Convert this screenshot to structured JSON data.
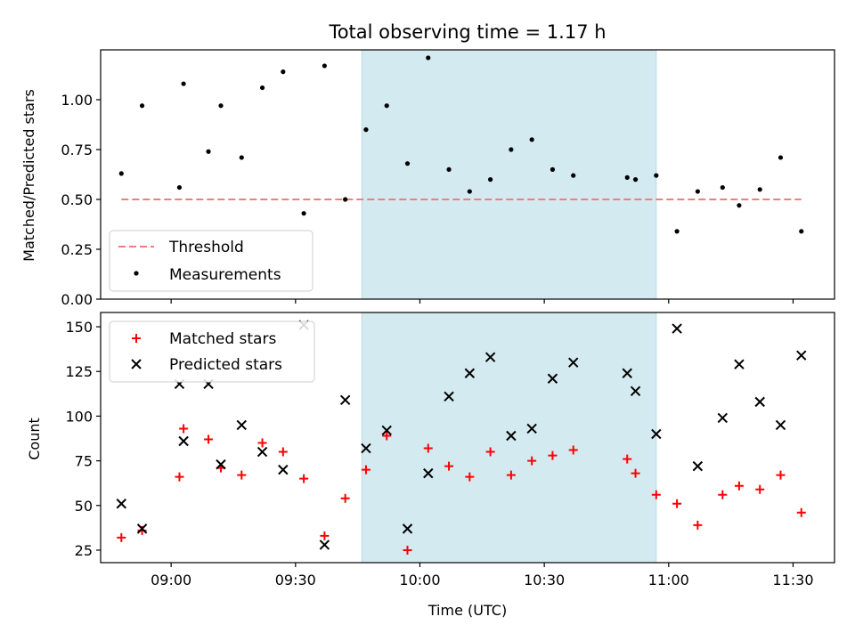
{
  "chart_data": [
    {
      "type": "scatter",
      "title": "Total observing time = 1.17 h",
      "ylabel": "Matched/Predicted stars",
      "xlabel": "",
      "x_range": [
        "08:43",
        "11:40"
      ],
      "ylim": [
        0,
        1.25
      ],
      "yticks": [
        "0.00",
        "0.25",
        "0.50",
        "0.75",
        "1.00"
      ],
      "highlight_span": {
        "start": "09:46",
        "end": "10:57",
        "color": "#d4eaf1"
      },
      "threshold": {
        "name": "Threshold",
        "value": 0.5,
        "x_start": "08:48",
        "x_end": "11:32",
        "color": "#f47c7c"
      },
      "series": [
        {
          "name": "Measurements",
          "color": "#000000",
          "points": [
            [
              "08:48",
              0.63
            ],
            [
              "08:53",
              0.97
            ],
            [
              "09:02",
              0.56
            ],
            [
              "09:03",
              1.08
            ],
            [
              "09:09",
              0.74
            ],
            [
              "09:12",
              0.97
            ],
            [
              "09:17",
              0.71
            ],
            [
              "09:22",
              1.06
            ],
            [
              "09:27",
              1.14
            ],
            [
              "09:32",
              0.43
            ],
            [
              "09:37",
              1.17
            ],
            [
              "09:42",
              0.5
            ],
            [
              "09:47",
              0.85
            ],
            [
              "09:52",
              0.97
            ],
            [
              "09:57",
              0.68
            ],
            [
              "10:02",
              1.21
            ],
            [
              "10:07",
              0.65
            ],
            [
              "10:12",
              0.54
            ],
            [
              "10:17",
              0.6
            ],
            [
              "10:22",
              0.75
            ],
            [
              "10:27",
              0.8
            ],
            [
              "10:32",
              0.65
            ],
            [
              "10:37",
              0.62
            ],
            [
              "10:50",
              0.61
            ],
            [
              "10:52",
              0.6
            ],
            [
              "10:57",
              0.62
            ],
            [
              "11:02",
              0.34
            ],
            [
              "11:07",
              0.54
            ],
            [
              "11:13",
              0.56
            ],
            [
              "11:17",
              0.47
            ],
            [
              "11:22",
              0.55
            ],
            [
              "11:27",
              0.71
            ],
            [
              "11:32",
              0.34
            ]
          ]
        }
      ],
      "legend": {
        "position": "lower-left",
        "entries": [
          "Threshold",
          "Measurements"
        ]
      }
    },
    {
      "type": "scatter",
      "title": "",
      "ylabel": "Count",
      "xlabel": "Time (UTC)",
      "x_range": [
        "08:43",
        "11:40"
      ],
      "xticks": [
        "09:00",
        "09:30",
        "10:00",
        "10:30",
        "11:00",
        "11:30"
      ],
      "ylim": [
        18,
        158
      ],
      "yticks": [
        "25",
        "50",
        "75",
        "100",
        "125",
        "150"
      ],
      "highlight_span": {
        "start": "09:46",
        "end": "10:57",
        "color": "#d4eaf1"
      },
      "series": [
        {
          "name": "Matched stars",
          "marker": "+",
          "color": "#ff0000",
          "points": [
            [
              "08:48",
              32
            ],
            [
              "08:53",
              36
            ],
            [
              "09:02",
              66
            ],
            [
              "09:03",
              93
            ],
            [
              "09:09",
              87
            ],
            [
              "09:12",
              71
            ],
            [
              "09:17",
              67
            ],
            [
              "09:22",
              85
            ],
            [
              "09:27",
              80
            ],
            [
              "09:32",
              65
            ],
            [
              "09:37",
              33
            ],
            [
              "09:42",
              54
            ],
            [
              "09:47",
              70
            ],
            [
              "09:52",
              89
            ],
            [
              "09:57",
              25
            ],
            [
              "10:02",
              82
            ],
            [
              "10:07",
              72
            ],
            [
              "10:12",
              66
            ],
            [
              "10:17",
              80
            ],
            [
              "10:22",
              67
            ],
            [
              "10:27",
              75
            ],
            [
              "10:32",
              78
            ],
            [
              "10:37",
              81
            ],
            [
              "10:50",
              76
            ],
            [
              "10:52",
              68
            ],
            [
              "10:57",
              56
            ],
            [
              "11:02",
              51
            ],
            [
              "11:07",
              39
            ],
            [
              "11:13",
              56
            ],
            [
              "11:17",
              61
            ],
            [
              "11:22",
              59
            ],
            [
              "11:27",
              67
            ],
            [
              "11:32",
              46
            ]
          ]
        },
        {
          "name": "Predicted stars",
          "marker": "x",
          "color": "#000000",
          "points": [
            [
              "08:48",
              51
            ],
            [
              "08:53",
              37
            ],
            [
              "09:02",
              118
            ],
            [
              "09:03",
              86
            ],
            [
              "09:09",
              118
            ],
            [
              "09:12",
              73
            ],
            [
              "09:17",
              95
            ],
            [
              "09:22",
              80
            ],
            [
              "09:27",
              70
            ],
            [
              "09:32",
              151
            ],
            [
              "09:37",
              28
            ],
            [
              "09:42",
              109
            ],
            [
              "09:47",
              82
            ],
            [
              "09:52",
              92
            ],
            [
              "09:57",
              37
            ],
            [
              "10:02",
              68
            ],
            [
              "10:07",
              111
            ],
            [
              "10:12",
              124
            ],
            [
              "10:17",
              133
            ],
            [
              "10:22",
              89
            ],
            [
              "10:27",
              93
            ],
            [
              "10:32",
              121
            ],
            [
              "10:37",
              130
            ],
            [
              "10:50",
              124
            ],
            [
              "10:52",
              114
            ],
            [
              "10:57",
              90
            ],
            [
              "11:02",
              149
            ],
            [
              "11:07",
              72
            ],
            [
              "11:13",
              99
            ],
            [
              "11:17",
              129
            ],
            [
              "11:22",
              108
            ],
            [
              "11:27",
              95
            ],
            [
              "11:32",
              134
            ]
          ]
        }
      ],
      "legend": {
        "position": "upper-left",
        "entries": [
          "Matched stars",
          "Predicted stars"
        ]
      }
    }
  ]
}
